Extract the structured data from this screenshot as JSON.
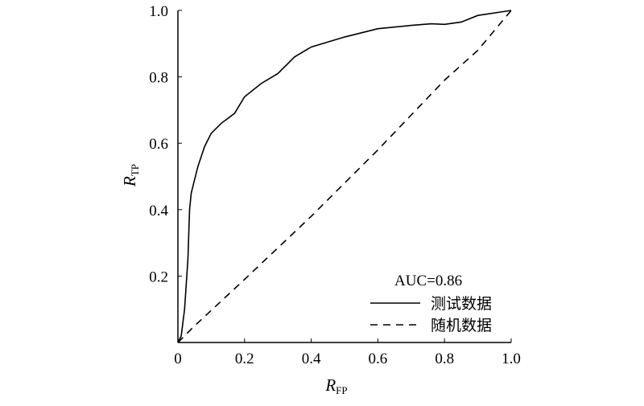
{
  "chart_data": {
    "type": "line",
    "xlabel": "R",
    "xlabel_sub": "FP",
    "ylabel": "R",
    "ylabel_sub": "TP",
    "annotation": "AUC=0.86",
    "xlim": [
      0,
      1
    ],
    "ylim": [
      0,
      1
    ],
    "xticks": [
      0,
      0.2,
      0.4,
      0.6,
      0.8,
      {
        "value": 1,
        "label": "1.0"
      }
    ],
    "yticks": [
      0.2,
      0.4,
      0.6,
      0.8,
      {
        "value": 1,
        "label": "1.0"
      }
    ],
    "series": [
      {
        "name": "测试数据",
        "color": "#000000",
        "dash": "solid",
        "x": [
          0,
          0.01,
          0.02,
          0.03,
          0.035,
          0.04,
          0.06,
          0.08,
          0.1,
          0.13,
          0.17,
          0.2,
          0.25,
          0.3,
          0.35,
          0.4,
          0.5,
          0.6,
          0.7,
          0.76,
          0.8,
          0.85,
          0.9,
          1
        ],
        "values": [
          0,
          0.02,
          0.1,
          0.25,
          0.4,
          0.45,
          0.53,
          0.59,
          0.63,
          0.66,
          0.69,
          0.74,
          0.78,
          0.81,
          0.86,
          0.89,
          0.92,
          0.945,
          0.955,
          0.96,
          0.958,
          0.965,
          0.985,
          1
        ]
      },
      {
        "name": "随机数据",
        "color": "#000000",
        "dash": "dashed",
        "x": [
          0,
          0.05,
          0.2,
          0.4,
          0.6,
          0.8,
          0.9,
          1
        ],
        "values": [
          0,
          0.05,
          0.19,
          0.38,
          0.58,
          0.79,
          0.88,
          1
        ]
      }
    ]
  }
}
